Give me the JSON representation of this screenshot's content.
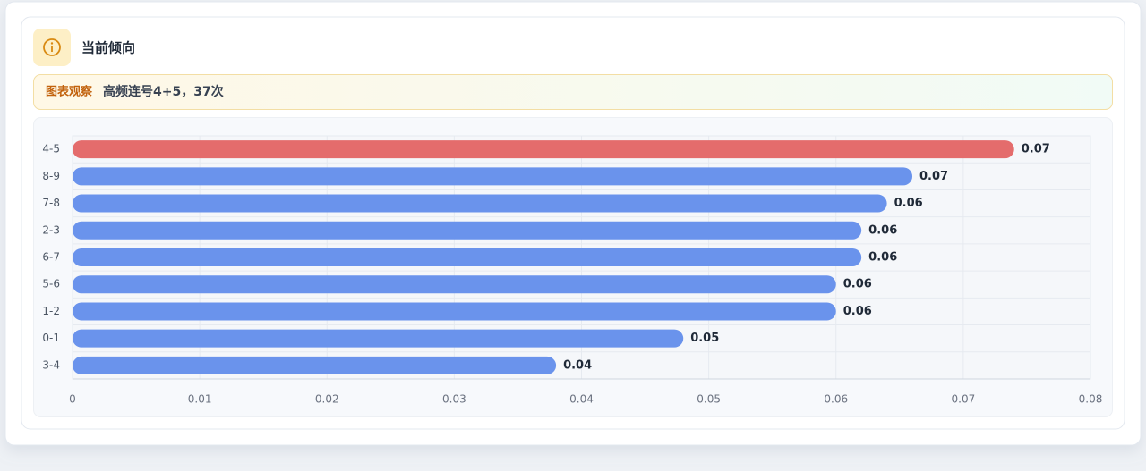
{
  "card": {
    "title": "当前倾向",
    "observation": {
      "label": "图表观察",
      "text": "高频连号4+5，37次"
    }
  },
  "chart_data": {
    "type": "hbar",
    "categories": [
      "4-5",
      "8-9",
      "7-8",
      "2-3",
      "6-7",
      "5-6",
      "1-2",
      "0-1",
      "3-4"
    ],
    "values": [
      0.074,
      0.066,
      0.064,
      0.062,
      0.062,
      0.06,
      0.06,
      0.048,
      0.038
    ],
    "value_labels": [
      "0.07",
      "0.07",
      "0.06",
      "0.06",
      "0.06",
      "0.06",
      "0.06",
      "0.05",
      "0.04"
    ],
    "colors": [
      "#e46c6c",
      "#6a93ec",
      "#6a93ec",
      "#6a93ec",
      "#6a93ec",
      "#6a93ec",
      "#6a93ec",
      "#6a93ec",
      "#6a93ec"
    ],
    "xlim": [
      0,
      0.08
    ],
    "xticks": [
      0,
      0.01,
      0.02,
      0.03,
      0.04,
      0.05,
      0.06,
      0.07,
      0.08
    ],
    "grid": true
  }
}
